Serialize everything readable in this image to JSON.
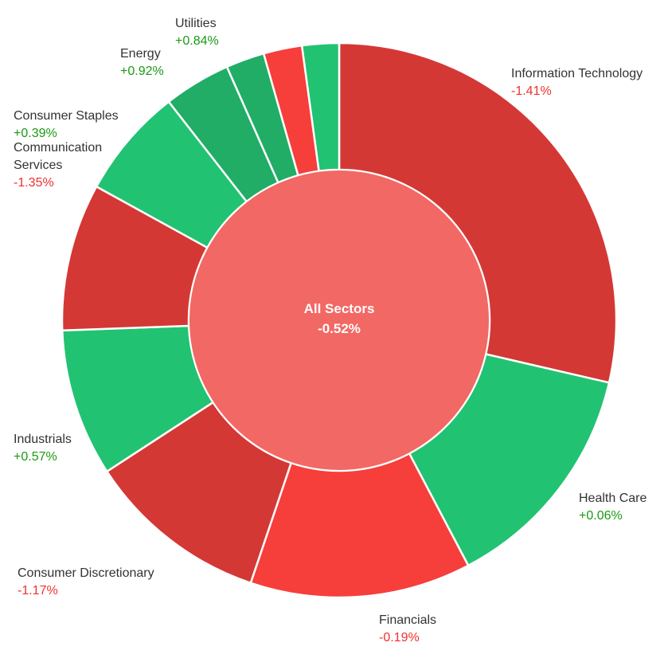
{
  "chart_data": {
    "type": "pie",
    "style": "sunburst-donut",
    "center": {
      "label": "All Sectors",
      "value_label": "-0.52%",
      "color": "#f26864"
    },
    "slices": [
      {
        "name_lines": [
          "Information Technology"
        ],
        "value_label": "-1.41%",
        "weight": 29.3,
        "color": "#d43835"
      },
      {
        "name_lines": [
          "Health Care"
        ],
        "value_label": "+0.06%",
        "weight": 14.0,
        "color": "#22c273"
      },
      {
        "name_lines": [
          "Financials"
        ],
        "value_label": "-0.19%",
        "weight": 13.2,
        "color": "#f63e3b"
      },
      {
        "name_lines": [
          "Consumer Discretionary"
        ],
        "value_label": "-1.17%",
        "weight": 10.9,
        "color": "#d43835"
      },
      {
        "name_lines": [
          "Industrials"
        ],
        "value_label": "+0.57%",
        "weight": 8.8,
        "color": "#22c273"
      },
      {
        "name_lines": [
          "Communication",
          "Services"
        ],
        "value_label": "-1.35%",
        "weight": 8.8,
        "color": "#d43835"
      },
      {
        "name_lines": [
          "Consumer Staples"
        ],
        "value_label": "+0.39%",
        "weight": 6.6,
        "color": "#22c273"
      },
      {
        "name_lines": [
          "Energy"
        ],
        "value_label": "+0.92%",
        "weight": 4.0,
        "color": "#21ad65"
      },
      {
        "name_lines": [
          "Utilities"
        ],
        "value_label": "+0.84%",
        "weight": 2.3,
        "color": "#21ad65"
      },
      {
        "name_lines": [],
        "value_label": "",
        "weight": 2.3,
        "color": "#f63e3b"
      },
      {
        "name_lines": [],
        "value_label": "",
        "weight": 2.2,
        "color": "#22c273"
      }
    ],
    "value_colors": {
      "positive": "#1a9a12",
      "negative": "#f0302e"
    }
  }
}
